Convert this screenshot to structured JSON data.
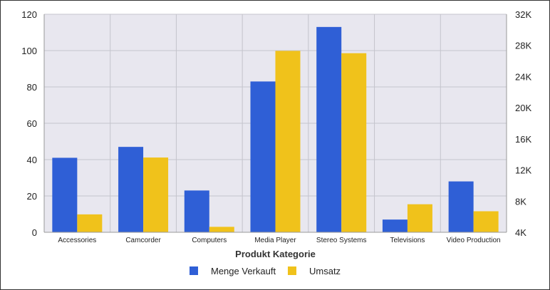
{
  "chart_data": {
    "type": "bar",
    "title": "",
    "xlabel": "Produkt Kategorie",
    "ylabel": "",
    "categories": [
      "Accessories",
      "Camcorder",
      "Computers",
      "Media Player",
      "Stereo Systems",
      "Televisions",
      "Video Production"
    ],
    "series": [
      {
        "name": "Menge Verkauft",
        "axis": "left",
        "color": "#2f5fd6",
        "values": [
          41,
          47,
          23,
          83,
          113,
          7,
          28
        ]
      },
      {
        "name": "Umsatz",
        "axis": "right",
        "color": "#f0c21b",
        "values": [
          6300,
          13600,
          4700,
          27300,
          27000,
          7600,
          6700
        ]
      }
    ],
    "y_left": {
      "lim": [
        0,
        120
      ],
      "ticks": [
        0,
        20,
        40,
        60,
        80,
        100,
        120
      ],
      "tick_labels": [
        "0",
        "20",
        "40",
        "60",
        "80",
        "100",
        "120"
      ]
    },
    "y_right": {
      "lim": [
        4000,
        32000
      ],
      "ticks": [
        4000,
        8000,
        12000,
        16000,
        20000,
        24000,
        28000,
        32000
      ],
      "tick_labels": [
        "4K",
        "8K",
        "12K",
        "16K",
        "20K",
        "24K",
        "28K",
        "32K"
      ]
    },
    "grid": true,
    "legend_position": "bottom-center",
    "colors": {
      "plot_background": "#e8e7ef",
      "grid": "#c4c4cc"
    }
  }
}
